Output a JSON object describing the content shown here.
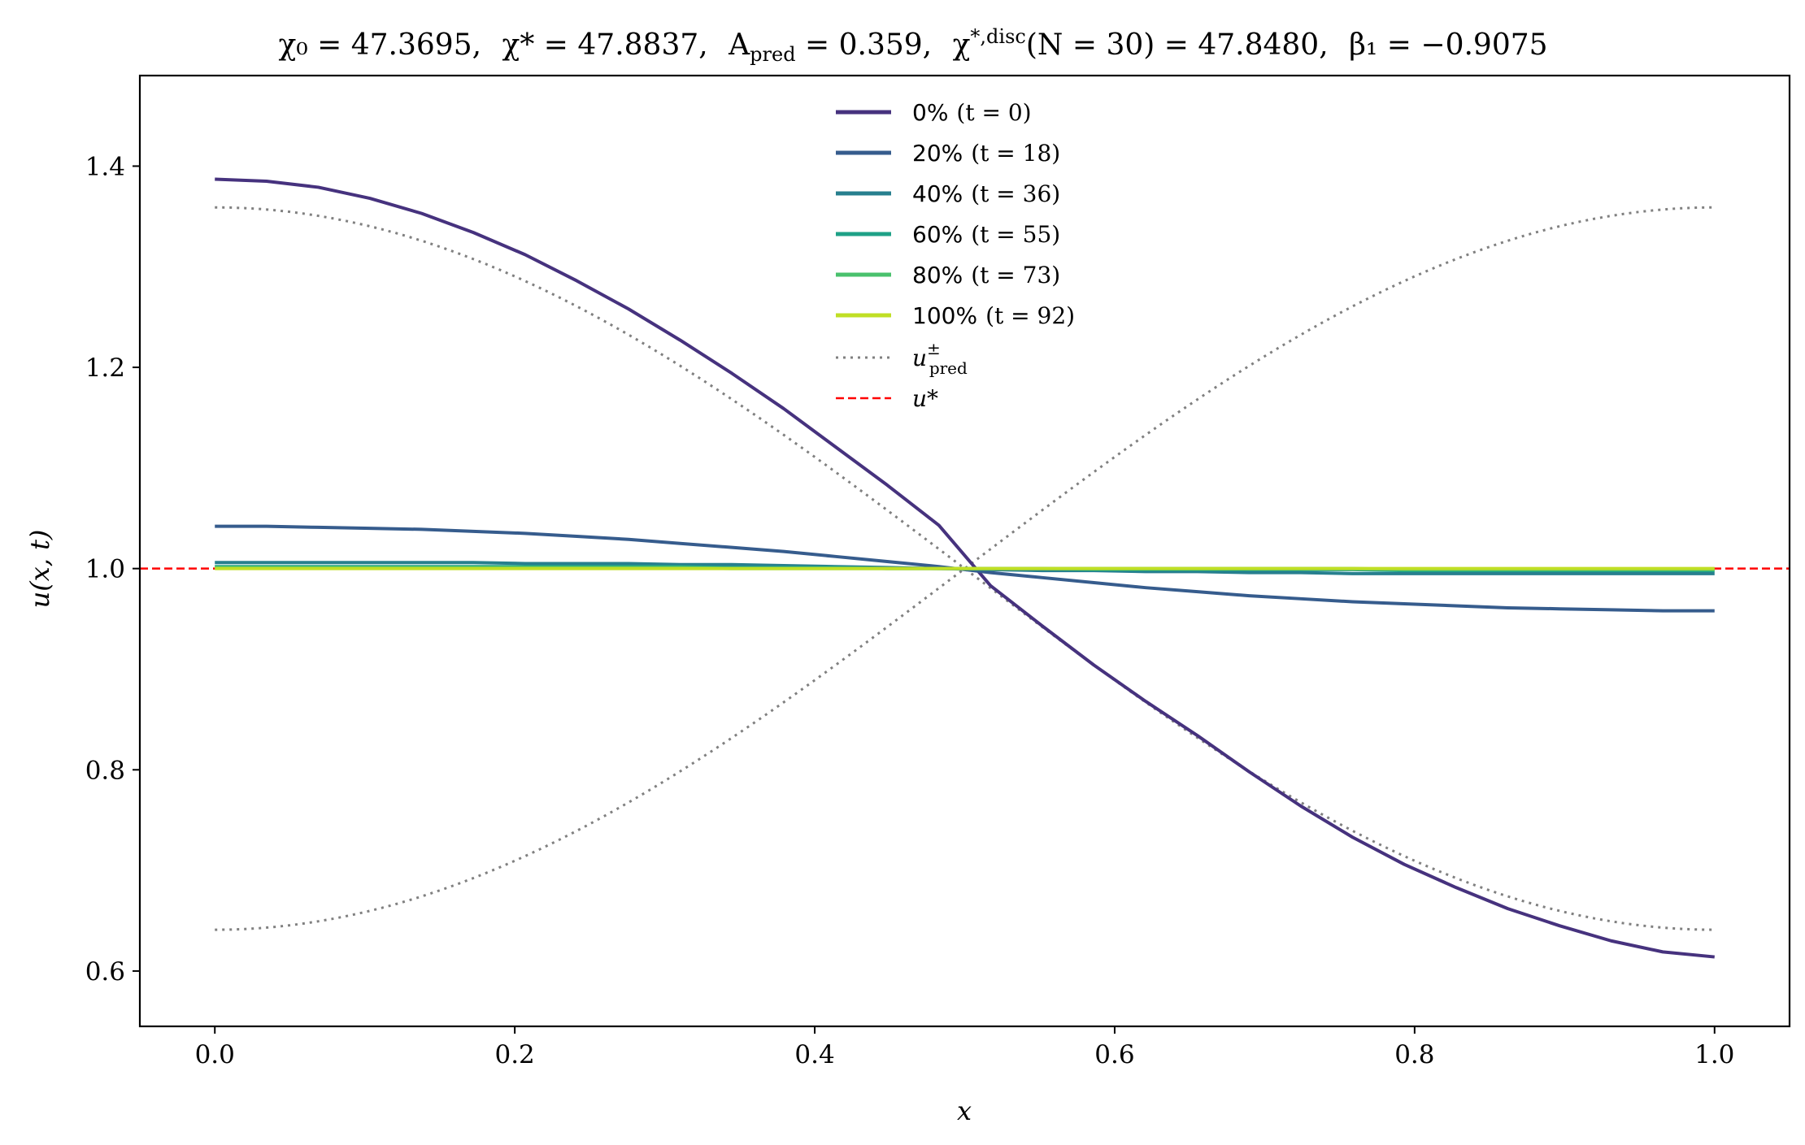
{
  "chart_data": {
    "type": "line",
    "title": "χ₀ = 47.3695,  χ* = 47.8837,  A_pred = 0.359,  χ*,disc(N = 30) = 47.8480,  β₁ = −0.9075",
    "title_parts": {
      "chi0": "χ₀ = 47.3695,",
      "chistar": "χ* = 47.8837,",
      "apred": "A",
      "apred_sub": "pred",
      "apred_val": " = 0.359,",
      "chidisc": "χ",
      "chidisc_sup": "*,disc",
      "chidisc_val": "(N = 30) = 47.8480,",
      "beta": "β₁ = −0.9075"
    },
    "xlabel": "x",
    "ylabel": "u(x, t)",
    "xlim": [
      -0.05,
      1.05
    ],
    "ylim": [
      0.545,
      1.49
    ],
    "xticks": [
      0.0,
      0.2,
      0.4,
      0.6,
      0.8,
      1.0
    ],
    "xtick_labels": [
      "0.0",
      "0.2",
      "0.4",
      "0.6",
      "0.8",
      "1.0"
    ],
    "yticks": [
      0.6,
      0.8,
      1.0,
      1.2,
      1.4
    ],
    "ytick_labels": [
      "0.6",
      "0.8",
      "1.0",
      "1.2",
      "1.4"
    ],
    "grid": false,
    "legend_position": "top-center",
    "x": [
      0.0,
      0.0345,
      0.069,
      0.1034,
      0.1379,
      0.1724,
      0.2069,
      0.2414,
      0.2759,
      0.3103,
      0.3448,
      0.3793,
      0.4138,
      0.4483,
      0.4828,
      0.5172,
      0.5517,
      0.5862,
      0.6207,
      0.6552,
      0.6897,
      0.7241,
      0.7586,
      0.7931,
      0.8276,
      0.8621,
      0.8966,
      0.931,
      0.9655,
      1.0
    ],
    "series": [
      {
        "name": "0% (t = 0)",
        "label_pct": "0%",
        "label_t": "(t = 0)",
        "color": "#46327e",
        "style": "solid",
        "width": 4,
        "values": [
          1.387,
          1.385,
          1.379,
          1.368,
          1.353,
          1.334,
          1.312,
          1.286,
          1.258,
          1.227,
          1.194,
          1.159,
          1.121,
          1.083,
          1.043,
          0.983,
          0.943,
          0.904,
          0.868,
          0.834,
          0.798,
          0.764,
          0.733,
          0.706,
          0.683,
          0.662,
          0.645,
          0.63,
          0.619,
          0.614
        ]
      },
      {
        "name": "20% (t = 18)",
        "label_pct": "20%",
        "label_t": "(t = 18)",
        "color": "#365c8d",
        "style": "solid",
        "width": 4,
        "values": [
          1.042,
          1.042,
          1.041,
          1.04,
          1.039,
          1.037,
          1.035,
          1.032,
          1.029,
          1.025,
          1.021,
          1.017,
          1.012,
          1.007,
          1.002,
          0.996,
          0.991,
          0.986,
          0.981,
          0.977,
          0.973,
          0.97,
          0.967,
          0.965,
          0.963,
          0.961,
          0.96,
          0.959,
          0.958,
          0.958
        ]
      },
      {
        "name": "40% (t = 36)",
        "label_pct": "40%",
        "label_t": "(t = 36)",
        "color": "#277f8e",
        "style": "solid",
        "width": 4,
        "values": [
          1.006,
          1.006,
          1.006,
          1.006,
          1.006,
          1.006,
          1.005,
          1.005,
          1.005,
          1.004,
          1.004,
          1.003,
          1.002,
          1.001,
          1.0,
          0.999,
          0.998,
          0.998,
          0.997,
          0.997,
          0.996,
          0.996,
          0.995,
          0.995,
          0.995,
          0.995,
          0.995,
          0.995,
          0.995,
          0.995
        ]
      },
      {
        "name": "60% (t = 55)",
        "label_pct": "60%",
        "label_t": "(t = 55)",
        "color": "#1fa187",
        "style": "solid",
        "width": 4,
        "values": [
          1.002,
          1.002,
          1.002,
          1.002,
          1.002,
          1.002,
          1.002,
          1.002,
          1.002,
          1.002,
          1.001,
          1.001,
          1.001,
          1.0,
          1.0,
          1.0,
          1.0,
          0.999,
          0.999,
          0.999,
          0.999,
          0.999,
          0.999,
          0.998,
          0.998,
          0.998,
          0.998,
          0.998,
          0.998,
          0.998
        ]
      },
      {
        "name": "80% (t = 73)",
        "label_pct": "80%",
        "label_t": "(t = 73)",
        "color": "#4ac16d",
        "style": "solid",
        "width": 4,
        "values": [
          1.001,
          1.001,
          1.001,
          1.001,
          1.001,
          1.001,
          1.001,
          1.001,
          1.001,
          1.001,
          1.0,
          1.0,
          1.0,
          1.0,
          1.0,
          1.0,
          1.0,
          1.0,
          1.0,
          1.0,
          1.0,
          1.0,
          1.0,
          0.999,
          0.999,
          0.999,
          0.999,
          0.999,
          0.999,
          0.999
        ]
      },
      {
        "name": "100% (t = 92)",
        "label_pct": "100%",
        "label_t": "(t = 92)",
        "color": "#c0df25",
        "style": "solid",
        "width": 4,
        "values": [
          1.0,
          1.0,
          1.0,
          1.0,
          1.0,
          1.0,
          1.0,
          1.0,
          1.0,
          1.0,
          1.0,
          1.0,
          1.0,
          1.0,
          1.0,
          1.0,
          1.0,
          1.0,
          1.0,
          1.0,
          1.0,
          1.0,
          1.0,
          1.0,
          1.0,
          1.0,
          1.0,
          1.0,
          1.0,
          1.0
        ]
      }
    ],
    "u_pred_amplitude": 0.359,
    "u_pred_color": "#808080",
    "u_pred_label": "u",
    "u_pred_label_sup": "±",
    "u_pred_label_sub": "pred",
    "u_star": 1.0,
    "u_star_color": "#ff0000",
    "u_star_label": "u*"
  }
}
